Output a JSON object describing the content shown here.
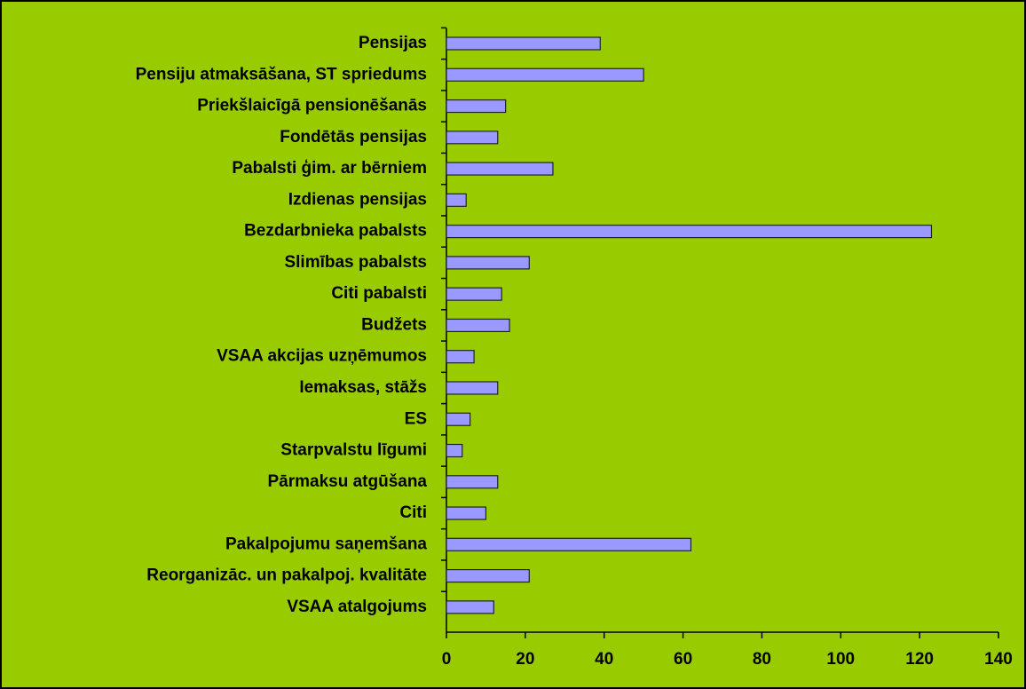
{
  "chart_data": {
    "type": "bar",
    "orientation": "horizontal",
    "categories": [
      "Pensijas",
      "Pensiju atmaksāšana, ST spriedums",
      "Priekšlaicīgā pensionēšanās",
      "Fondētās pensijas",
      "Pabalsti ģim. ar bērniem",
      "Izdienas pensijas",
      "Bezdarbnieka pabalsts",
      "Slimības pabalsts",
      "Citi pabalsti",
      "Budžets",
      "VSAA akcijas uzņēmumos",
      "Iemaksas, stāžs",
      "ES",
      "Starpvalstu līgumi",
      "Pārmaksu atgūšana",
      "Citi",
      "Pakalpojumu saņemšana",
      "Reorganizāc. un pakalpoj. kvalitāte",
      "VSAA atalgojums"
    ],
    "values": [
      39,
      50,
      15,
      13,
      27,
      5,
      123,
      21,
      14,
      16,
      7,
      13,
      6,
      4,
      13,
      10,
      62,
      21,
      12
    ],
    "color": "#9999ff",
    "background": "#99cc00",
    "xlim": [
      0,
      140
    ],
    "xticks": [
      0,
      20,
      40,
      60,
      80,
      100,
      120,
      140
    ],
    "grid": false
  }
}
